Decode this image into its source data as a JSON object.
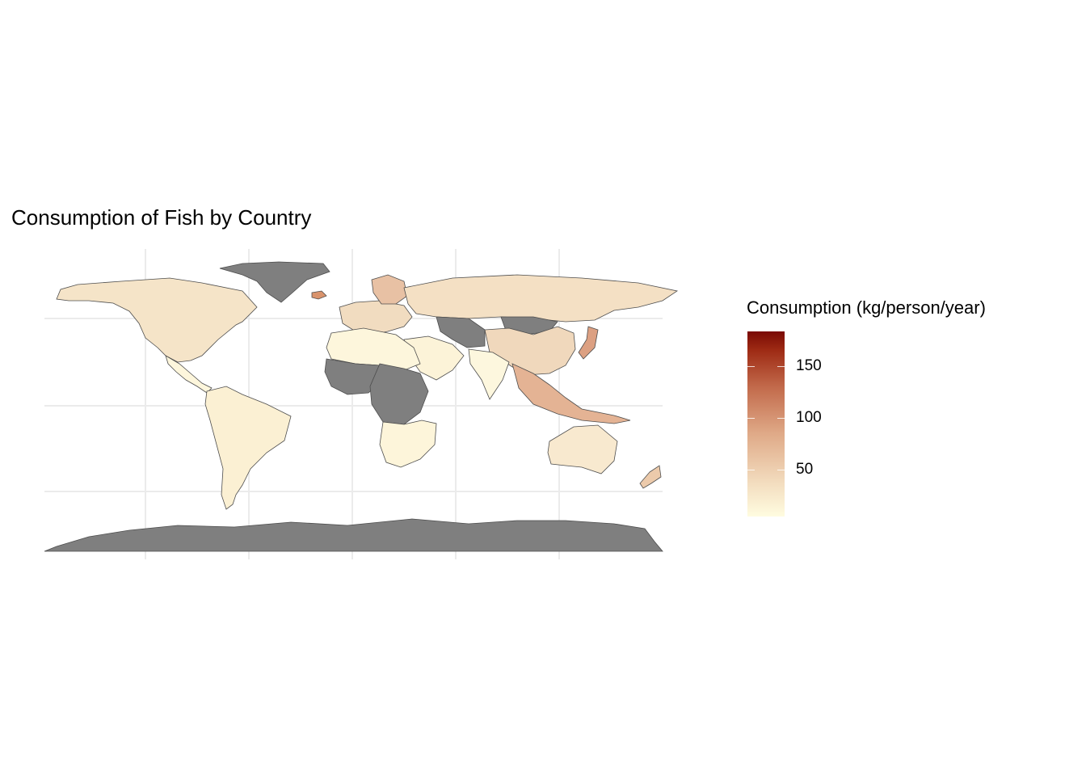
{
  "title": "Consumption of Fish by Country",
  "legend": {
    "title": "Consumption (kg/person/year)",
    "ticks": [
      {
        "label": "150",
        "value": 150
      },
      {
        "label": "100",
        "value": 100
      },
      {
        "label": "50",
        "value": 50
      }
    ],
    "min": 5,
    "max": 184,
    "colors": {
      "low": "#fffce0",
      "high": "#7a0a04",
      "missing": "#7f7f7f"
    }
  },
  "map": {
    "projection": "equirectangular",
    "gridlines": true,
    "regions": [
      {
        "name": "North America",
        "fill": "#f5e4c8"
      },
      {
        "name": "Greenland",
        "fill": "#7f7f7f"
      },
      {
        "name": "Iceland",
        "fill": "#d9936c"
      },
      {
        "name": "Central America",
        "fill": "#fdf6dc"
      },
      {
        "name": "South America",
        "fill": "#fbf0d3"
      },
      {
        "name": "Europe",
        "fill": "#f1dcc0"
      },
      {
        "name": "Scandinavia",
        "fill": "#e8c1a4"
      },
      {
        "name": "Russia",
        "fill": "#f4e0c4"
      },
      {
        "name": "Mongolia",
        "fill": "#7f7f7f"
      },
      {
        "name": "China",
        "fill": "#f0d8bc"
      },
      {
        "name": "Central Asia",
        "fill": "#7f7f7f"
      },
      {
        "name": "Middle East",
        "fill": "#fcf3d8"
      },
      {
        "name": "India",
        "fill": "#fdf7de"
      },
      {
        "name": "Southeast Asia",
        "fill": "#e4b394"
      },
      {
        "name": "Japan",
        "fill": "#dca082"
      },
      {
        "name": "North Africa",
        "fill": "#fdf6dc"
      },
      {
        "name": "West Africa",
        "fill": "#7f7f7f"
      },
      {
        "name": "Central Africa",
        "fill": "#7f7f7f"
      },
      {
        "name": "Southern Africa",
        "fill": "#fdf5da"
      },
      {
        "name": "Australia",
        "fill": "#f8e9cf"
      },
      {
        "name": "New Zealand",
        "fill": "#eccaab"
      },
      {
        "name": "Antarctica",
        "fill": "#7f7f7f"
      }
    ]
  }
}
